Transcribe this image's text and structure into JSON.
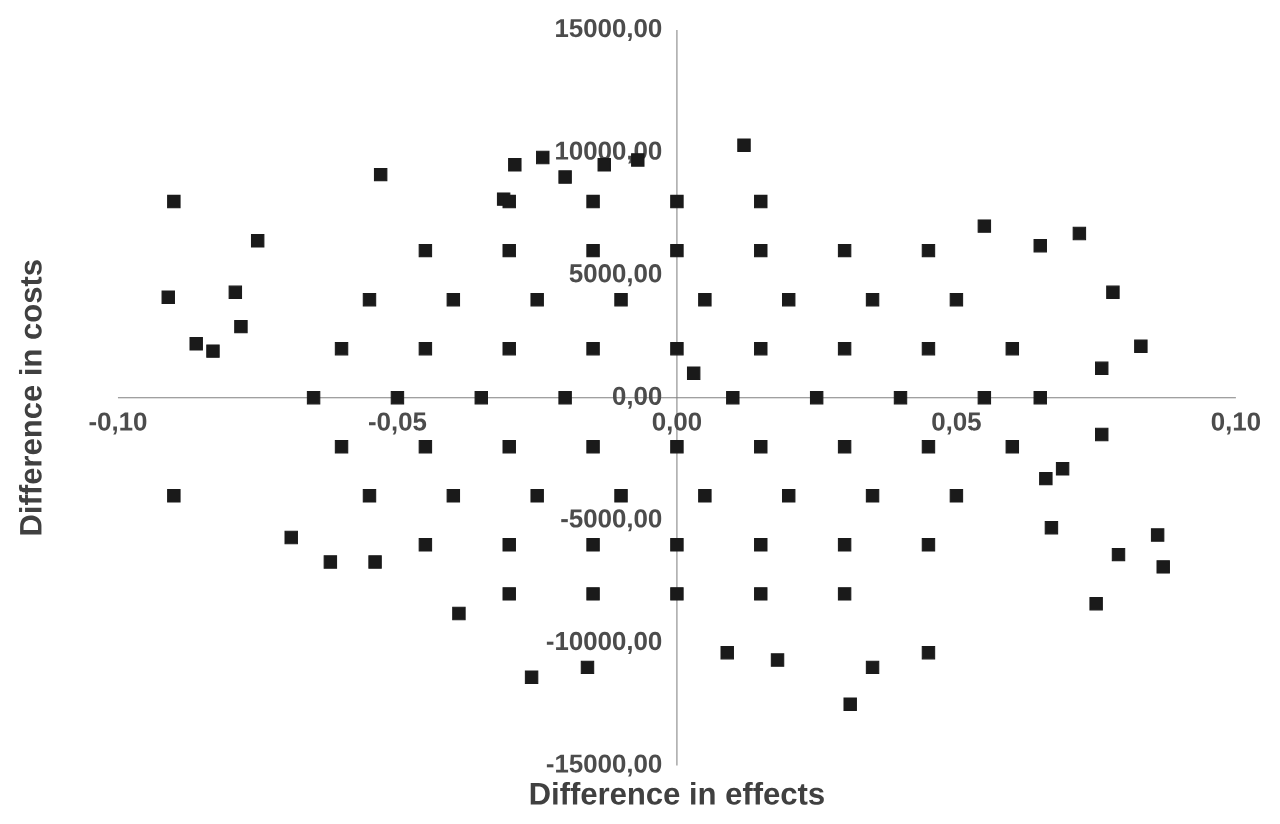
{
  "chart_data": {
    "type": "scatter",
    "xlabel": "Difference in effects",
    "ylabel": "Difference in costs",
    "color": "#1a1a1a",
    "marker": "square",
    "xlim": [
      -0.1,
      0.1
    ],
    "ylim": [
      -15000,
      15000
    ],
    "xticks": [
      {
        "value": -0.1,
        "label": "-0,10"
      },
      {
        "value": -0.05,
        "label": "-0,05"
      },
      {
        "value": 0,
        "label": "0,00"
      },
      {
        "value": 0.05,
        "label": "0,05"
      },
      {
        "value": 0.1,
        "label": "0,10"
      }
    ],
    "yticks": [
      {
        "value": -15000,
        "label": "-15000,00"
      },
      {
        "value": -10000,
        "label": "-10000,00"
      },
      {
        "value": -5000,
        "label": "-5000,00"
      },
      {
        "value": 0,
        "label": "0,00"
      },
      {
        "value": 5000,
        "label": "5000,00"
      },
      {
        "value": 10000,
        "label": "10000,00"
      },
      {
        "value": 15000,
        "label": "15000,00"
      }
    ],
    "x": [
      -0.09,
      -0.075,
      -0.091,
      -0.086,
      -0.083,
      -0.078,
      -0.09,
      -0.079,
      -0.069,
      -0.062,
      -0.054,
      -0.053,
      -0.039,
      -0.031,
      -0.029,
      -0.024,
      -0.02,
      -0.013,
      -0.007,
      -0.026,
      -0.016,
      0.009,
      0.012,
      0.018,
      0.031,
      0.035,
      0.045,
      0.055,
      0.065,
      0.066,
      0.072,
      0.078,
      0.083,
      0.076,
      0.086,
      0.087,
      0.075,
      0.067,
      0.079,
      0.069,
      0.076,
      -0.03,
      -0.015,
      0,
      0.015,
      -0.045,
      -0.03,
      -0.015,
      0,
      0.015,
      0.03,
      0.045,
      -0.055,
      -0.04,
      -0.025,
      -0.01,
      0.005,
      0.02,
      0.035,
      0.05,
      -0.06,
      -0.045,
      -0.03,
      -0.015,
      0,
      0.015,
      0.03,
      0.045,
      0.06,
      -0.065,
      -0.05,
      -0.035,
      -0.02,
      0.003,
      0.01,
      0.025,
      0.04,
      0.055,
      0.065,
      -0.06,
      -0.045,
      -0.03,
      -0.015,
      0,
      0.015,
      0.03,
      0.045,
      0.06,
      -0.055,
      -0.04,
      -0.025,
      -0.01,
      0.005,
      0.02,
      0.035,
      0.05,
      -0.045,
      -0.03,
      -0.015,
      0,
      0.015,
      0.03,
      0.045,
      -0.03,
      -0.015,
      0,
      0.015,
      0.03
    ],
    "values": [
      8000,
      6400,
      4100,
      2200,
      1900,
      2900,
      -4000,
      4300,
      -5700,
      -6700,
      -6700,
      9100,
      -8800,
      8100,
      9500,
      9800,
      9000,
      9500,
      9700,
      -11400,
      -11000,
      -10400,
      10300,
      -10700,
      -12500,
      -11000,
      -10400,
      7000,
      6200,
      -3300,
      6700,
      4300,
      2100,
      1200,
      -5600,
      -6900,
      -8400,
      -5300,
      -6400,
      -2900,
      -1500,
      8000,
      8000,
      8000,
      8000,
      6000,
      6000,
      6000,
      6000,
      6000,
      6000,
      6000,
      4000,
      4000,
      4000,
      4000,
      4000,
      4000,
      4000,
      4000,
      2000,
      2000,
      2000,
      2000,
      2000,
      2000,
      2000,
      2000,
      2000,
      0,
      0,
      0,
      0,
      1000,
      0,
      0,
      0,
      0,
      0,
      -2000,
      -2000,
      -2000,
      -2000,
      -2000,
      -2000,
      -2000,
      -2000,
      -2000,
      -4000,
      -4000,
      -4000,
      -4000,
      -4000,
      -4000,
      -4000,
      -4000,
      -6000,
      -6000,
      -6000,
      -6000,
      -6000,
      -6000,
      -6000,
      -8000,
      -8000,
      -8000,
      -8000,
      -8000
    ]
  }
}
